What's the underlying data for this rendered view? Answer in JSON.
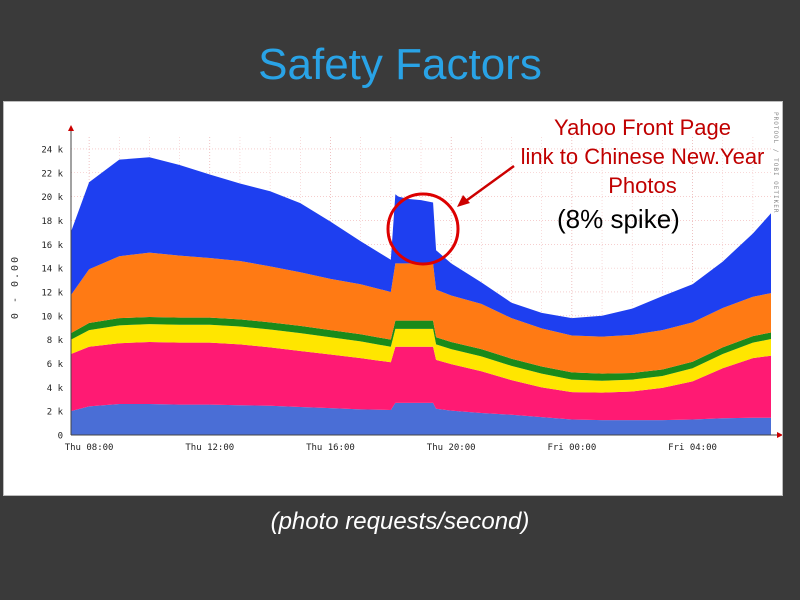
{
  "slide": {
    "title": "Safety Factors",
    "caption": "(photo requests/second)"
  },
  "annotation": {
    "lines": [
      "Yahoo Front Page",
      "link to Chinese New.Year",
      "Photos"
    ],
    "spike_note": "(8% spike)",
    "color": "#cc0000"
  },
  "watermark": "PROTOOL / TOBI OETIKER",
  "colors": {
    "slide_bg": "#3a3a3a",
    "title": "#29a3e6"
  },
  "chart_data": {
    "type": "area",
    "stacked": true,
    "ylabel": "0 - 0.00",
    "ylim": [
      0,
      25000
    ],
    "yticks": [
      0,
      2000,
      4000,
      6000,
      8000,
      10000,
      12000,
      14000,
      16000,
      18000,
      20000,
      22000,
      24000
    ],
    "ytick_labels": [
      "0",
      "2 k",
      "4 k",
      "6 k",
      "8 k",
      "10 k",
      "12 k",
      "14 k",
      "16 k",
      "18 k",
      "20 k",
      "22 k",
      "24 k"
    ],
    "xticks": [
      {
        "hours": 8,
        "label": "Thu 08:00"
      },
      {
        "hours": 12,
        "label": "Thu 12:00"
      },
      {
        "hours": 16,
        "label": "Thu 16:00"
      },
      {
        "hours": 20,
        "label": "Thu 20:00"
      },
      {
        "hours": 24,
        "label": "Fri 00:00"
      },
      {
        "hours": 28,
        "label": "Fri 04:00"
      }
    ],
    "x_range_hours": [
      7.4,
      30.6
    ],
    "x": [
      7.4,
      8.0,
      9.0,
      10.0,
      11.0,
      12.0,
      13.0,
      14.0,
      15.0,
      16.0,
      17.0,
      18.0,
      18.15,
      18.25,
      18.6,
      19.0,
      19.4,
      19.5,
      20.0,
      21.0,
      22.0,
      23.0,
      24.0,
      25.0,
      26.0,
      27.0,
      28.0,
      29.0,
      30.0,
      30.6
    ],
    "series": [
      {
        "color": "#4a6ed6",
        "values": [
          2000,
          2400,
          2600,
          2600,
          2550,
          2550,
          2500,
          2450,
          2350,
          2250,
          2150,
          2100,
          2700,
          2700,
          2700,
          2700,
          2700,
          2200,
          2050,
          1850,
          1700,
          1500,
          1300,
          1250,
          1250,
          1250,
          1300,
          1400,
          1450,
          1450
        ]
      },
      {
        "color": "#ff1a73",
        "values": [
          4800,
          5000,
          5100,
          5200,
          5200,
          5200,
          5100,
          4900,
          4700,
          4500,
          4300,
          4000,
          4700,
          4700,
          4700,
          4700,
          4700,
          4100,
          3900,
          3500,
          2900,
          2500,
          2300,
          2300,
          2400,
          2700,
          3200,
          4200,
          5000,
          5200
        ]
      },
      {
        "color": "#ffe600",
        "values": [
          1200,
          1400,
          1500,
          1500,
          1500,
          1500,
          1500,
          1500,
          1500,
          1450,
          1400,
          1300,
          1500,
          1500,
          1500,
          1500,
          1500,
          1300,
          1250,
          1250,
          1200,
          1150,
          1050,
          1000,
          1000,
          1000,
          1100,
          1200,
          1300,
          1400
        ]
      },
      {
        "color": "#1a8a1a",
        "values": [
          550,
          600,
          600,
          600,
          600,
          600,
          600,
          600,
          600,
          600,
          600,
          600,
          700,
          700,
          700,
          700,
          700,
          600,
          600,
          600,
          600,
          600,
          600,
          600,
          550,
          550,
          550,
          550,
          550,
          550
        ]
      },
      {
        "color": "#ff7a14",
        "values": [
          3200,
          4500,
          5200,
          5400,
          5200,
          5000,
          4900,
          4700,
          4500,
          4300,
          4200,
          4000,
          4800,
          4800,
          4800,
          4800,
          4800,
          4000,
          3900,
          3800,
          3400,
          3200,
          3100,
          3100,
          3200,
          3300,
          3300,
          3300,
          3300,
          3300
        ]
      },
      {
        "color": "#1e3ff0",
        "values": [
          5300,
          7300,
          8100,
          8000,
          7600,
          7000,
          6500,
          6300,
          5800,
          4800,
          3600,
          2700,
          5800,
          5600,
          5400,
          5300,
          5100,
          3300,
          2700,
          1800,
          1300,
          1300,
          1450,
          1750,
          2200,
          2850,
          3200,
          3900,
          5300,
          6700
        ]
      }
    ]
  }
}
